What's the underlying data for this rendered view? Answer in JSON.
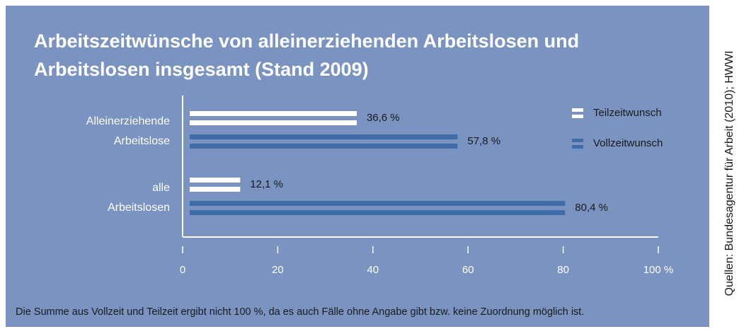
{
  "chart_data": {
    "type": "bar",
    "orientation": "horizontal",
    "title": "Arbeitszeitwünsche von alleinerziehenden Arbeitslosen und Arbeitslosen insgesamt (Stand 2009)",
    "categories": [
      "Alleinerziehende Arbeitslose",
      "alle Arbeitslosen"
    ],
    "series": [
      {
        "name": "Teilzeitwunsch",
        "color": "#ffffff",
        "values": [
          36.6,
          12.1
        ],
        "value_labels": [
          "36,6 %",
          "12,1 %"
        ]
      },
      {
        "name": "Vollzeitwunsch",
        "color": "#3e6ca9",
        "values": [
          57.8,
          80.4
        ],
        "value_labels": [
          "57,8 %",
          "80,4 %"
        ]
      }
    ],
    "xlim": [
      0,
      100
    ],
    "xticks": [
      0,
      20,
      40,
      60,
      80,
      {
        "value": 100,
        "label": "100 %"
      }
    ],
    "legend": "upper right",
    "footnote": "Die Summe aus Vollzeit und Teilzeit ergibt nicht 100 %, da es auch Fälle ohne Angabe gibt bzw. keine Zuordnung möglich ist.",
    "source": "Quellen: Bundesagentur für Arbeit (2010); HWWI"
  }
}
